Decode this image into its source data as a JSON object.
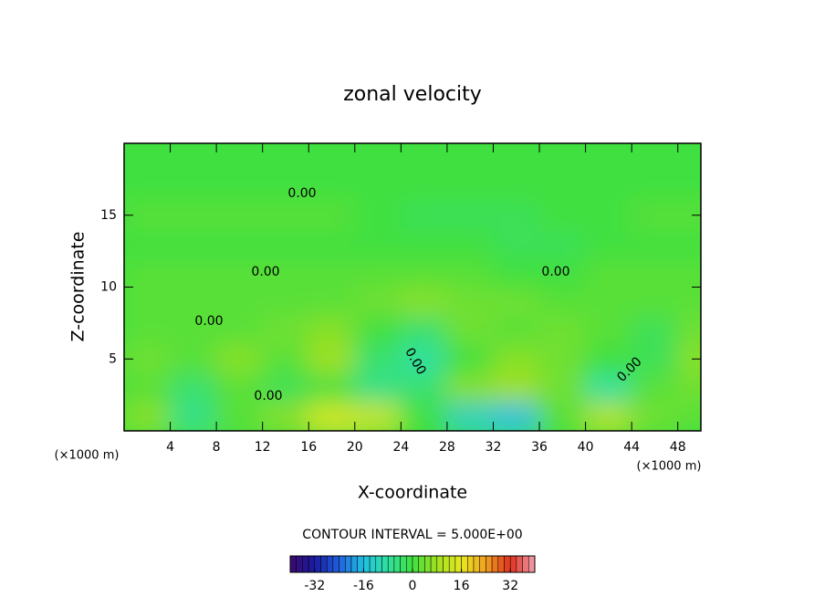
{
  "chart_data": {
    "type": "contour",
    "title": "zonal velocity",
    "x_label": "X-coordinate",
    "y_label": "Z-coordinate",
    "x_unit_label": "(×1000 m)",
    "y_unit_label": "(×1000 m)",
    "xlim": [
      0,
      50
    ],
    "xticks": [
      4,
      8,
      12,
      16,
      20,
      24,
      28,
      32,
      36,
      40,
      44,
      48
    ],
    "ylim": [
      0,
      20
    ],
    "yticks": [
      5,
      10,
      15
    ],
    "x": [
      2,
      6,
      10,
      14,
      18,
      22,
      26,
      30,
      34,
      38,
      42,
      46,
      50
    ],
    "z": [
      1,
      3,
      5,
      7,
      9,
      11,
      13,
      15,
      17,
      19
    ],
    "values": [
      [
        6,
        -6,
        2,
        6,
        14,
        12,
        0,
        -12,
        -16,
        2,
        10,
        4,
        2
      ],
      [
        2,
        -4,
        2,
        -2,
        0,
        -6,
        -4,
        6,
        8,
        4,
        -8,
        2,
        4
      ],
      [
        4,
        2,
        6,
        2,
        8,
        -4,
        -8,
        0,
        6,
        4,
        0,
        -2,
        6
      ],
      [
        2,
        2,
        2,
        4,
        6,
        0,
        -4,
        4,
        2,
        4,
        2,
        -2,
        4
      ],
      [
        2,
        2,
        2,
        2,
        2,
        4,
        6,
        4,
        4,
        2,
        2,
        2,
        2
      ],
      [
        2,
        2,
        2,
        2,
        2,
        2,
        2,
        2,
        0,
        0,
        2,
        2,
        2
      ],
      [
        0,
        0,
        0,
        0,
        0,
        0,
        0,
        0,
        -2,
        -2,
        0,
        0,
        0
      ],
      [
        2,
        2,
        2,
        2,
        2,
        0,
        -2,
        -2,
        -2,
        0,
        0,
        2,
        2
      ],
      [
        0,
        0,
        0,
        0,
        0,
        0,
        0,
        0,
        0,
        0,
        0,
        0,
        0
      ],
      [
        0,
        0,
        0,
        0,
        0,
        0,
        0,
        0,
        0,
        0,
        0,
        0,
        0
      ]
    ],
    "contour_labels": [
      "0.00",
      "0.00",
      "0.00",
      "0.00",
      "0.00",
      "0.00",
      "0.00"
    ],
    "contour_interval_label": "CONTOUR INTERVAL = 5.000E+00",
    "clim": [
      -40,
      40
    ],
    "cticks": [
      -32,
      -16,
      0,
      16,
      32
    ],
    "colormap": [
      "#3a0a6e",
      "#1a1aa0",
      "#2060e0",
      "#20c0e0",
      "#30e0a0",
      "#40e040",
      "#a0e020",
      "#e8e820",
      "#f0a020",
      "#e03020",
      "#f0a0b0"
    ]
  }
}
